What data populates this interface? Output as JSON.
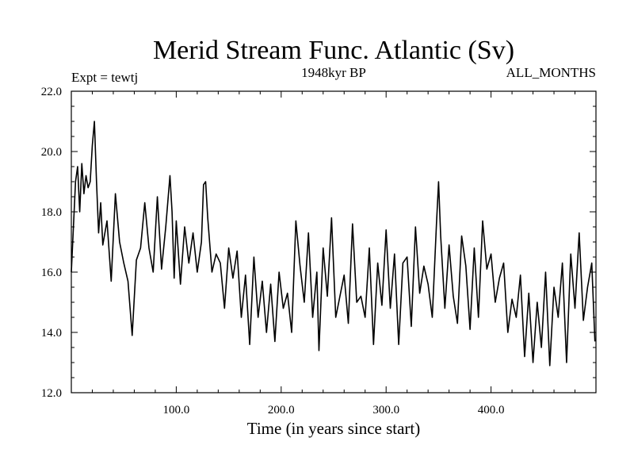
{
  "chart_data": {
    "type": "line",
    "title": "Merid Stream Func. Atlantic (Sv)",
    "subtitle_left": "Expt = tewtj",
    "subtitle_center": "1948kyr BP",
    "subtitle_right": "ALL_MONTHS",
    "xlabel": "Time (in years since start)",
    "ylabel": "",
    "xlim": [
      0,
      500
    ],
    "ylim": [
      12,
      22
    ],
    "xticks": [
      100,
      200,
      300,
      400
    ],
    "xtick_labels": [
      "100.0",
      "200.0",
      "300.0",
      "400.0"
    ],
    "yticks": [
      12,
      14,
      16,
      18,
      20,
      22
    ],
    "ytick_labels": [
      "12.0",
      "14.0",
      "16.0",
      "18.0",
      "20.0",
      "22.0"
    ],
    "series": [
      {
        "name": "Merid Stream Func. Atlantic",
        "x": [
          0,
          2,
          4,
          6,
          8,
          10,
          12,
          14,
          16,
          18,
          20,
          22,
          24,
          26,
          28,
          30,
          34,
          38,
          42,
          46,
          50,
          54,
          58,
          62,
          66,
          70,
          74,
          78,
          82,
          86,
          90,
          94,
          96,
          98,
          100,
          104,
          108,
          112,
          116,
          120,
          124,
          126,
          128,
          130,
          134,
          138,
          142,
          146,
          150,
          154,
          158,
          162,
          166,
          170,
          174,
          178,
          182,
          186,
          190,
          194,
          198,
          202,
          206,
          210,
          214,
          218,
          222,
          226,
          230,
          234,
          236,
          240,
          244,
          248,
          252,
          256,
          260,
          264,
          268,
          272,
          276,
          280,
          284,
          288,
          292,
          296,
          300,
          304,
          308,
          312,
          316,
          320,
          324,
          328,
          332,
          336,
          340,
          344,
          348,
          350,
          352,
          356,
          360,
          364,
          368,
          372,
          376,
          380,
          384,
          388,
          392,
          396,
          400,
          404,
          408,
          412,
          416,
          420,
          424,
          428,
          432,
          436,
          440,
          444,
          448,
          452,
          456,
          460,
          464,
          468,
          472,
          476,
          480,
          484,
          488,
          492,
          496,
          499
        ],
        "values": [
          16.0,
          17.5,
          19.0,
          19.5,
          18.0,
          19.6,
          18.6,
          19.2,
          18.8,
          19.0,
          20.2,
          21.0,
          19.0,
          17.3,
          18.3,
          16.9,
          17.7,
          15.7,
          18.6,
          17.0,
          16.3,
          15.7,
          13.9,
          16.4,
          16.8,
          18.3,
          16.8,
          16.0,
          18.5,
          16.1,
          17.5,
          19.2,
          18.0,
          15.8,
          17.7,
          15.6,
          17.5,
          16.3,
          17.3,
          16.0,
          17.0,
          18.9,
          19.0,
          17.8,
          16.0,
          16.6,
          16.3,
          14.8,
          16.8,
          15.8,
          16.7,
          14.5,
          15.9,
          13.6,
          16.5,
          14.5,
          15.7,
          14.0,
          15.6,
          13.7,
          16.0,
          14.8,
          15.3,
          14.0,
          17.7,
          16.2,
          15.0,
          17.3,
          14.5,
          16.0,
          13.4,
          16.8,
          15.2,
          17.8,
          14.5,
          15.2,
          15.9,
          14.3,
          17.6,
          15.0,
          15.2,
          14.5,
          16.8,
          13.6,
          16.3,
          14.9,
          17.4,
          14.8,
          16.6,
          13.6,
          16.3,
          16.5,
          14.2,
          17.5,
          15.3,
          16.2,
          15.6,
          14.5,
          17.6,
          19.0,
          17.2,
          14.8,
          16.9,
          15.2,
          14.3,
          17.2,
          16.2,
          14.1,
          16.8,
          14.5,
          17.7,
          16.1,
          16.6,
          15.0,
          15.8,
          16.3,
          14.0,
          15.1,
          14.5,
          15.9,
          13.2,
          15.3,
          13.0,
          15.0,
          13.5,
          16.0,
          12.9,
          15.5,
          14.5,
          16.3,
          13.0,
          16.6,
          14.8,
          17.3,
          14.4,
          15.5,
          16.3,
          13.7
        ]
      }
    ]
  }
}
